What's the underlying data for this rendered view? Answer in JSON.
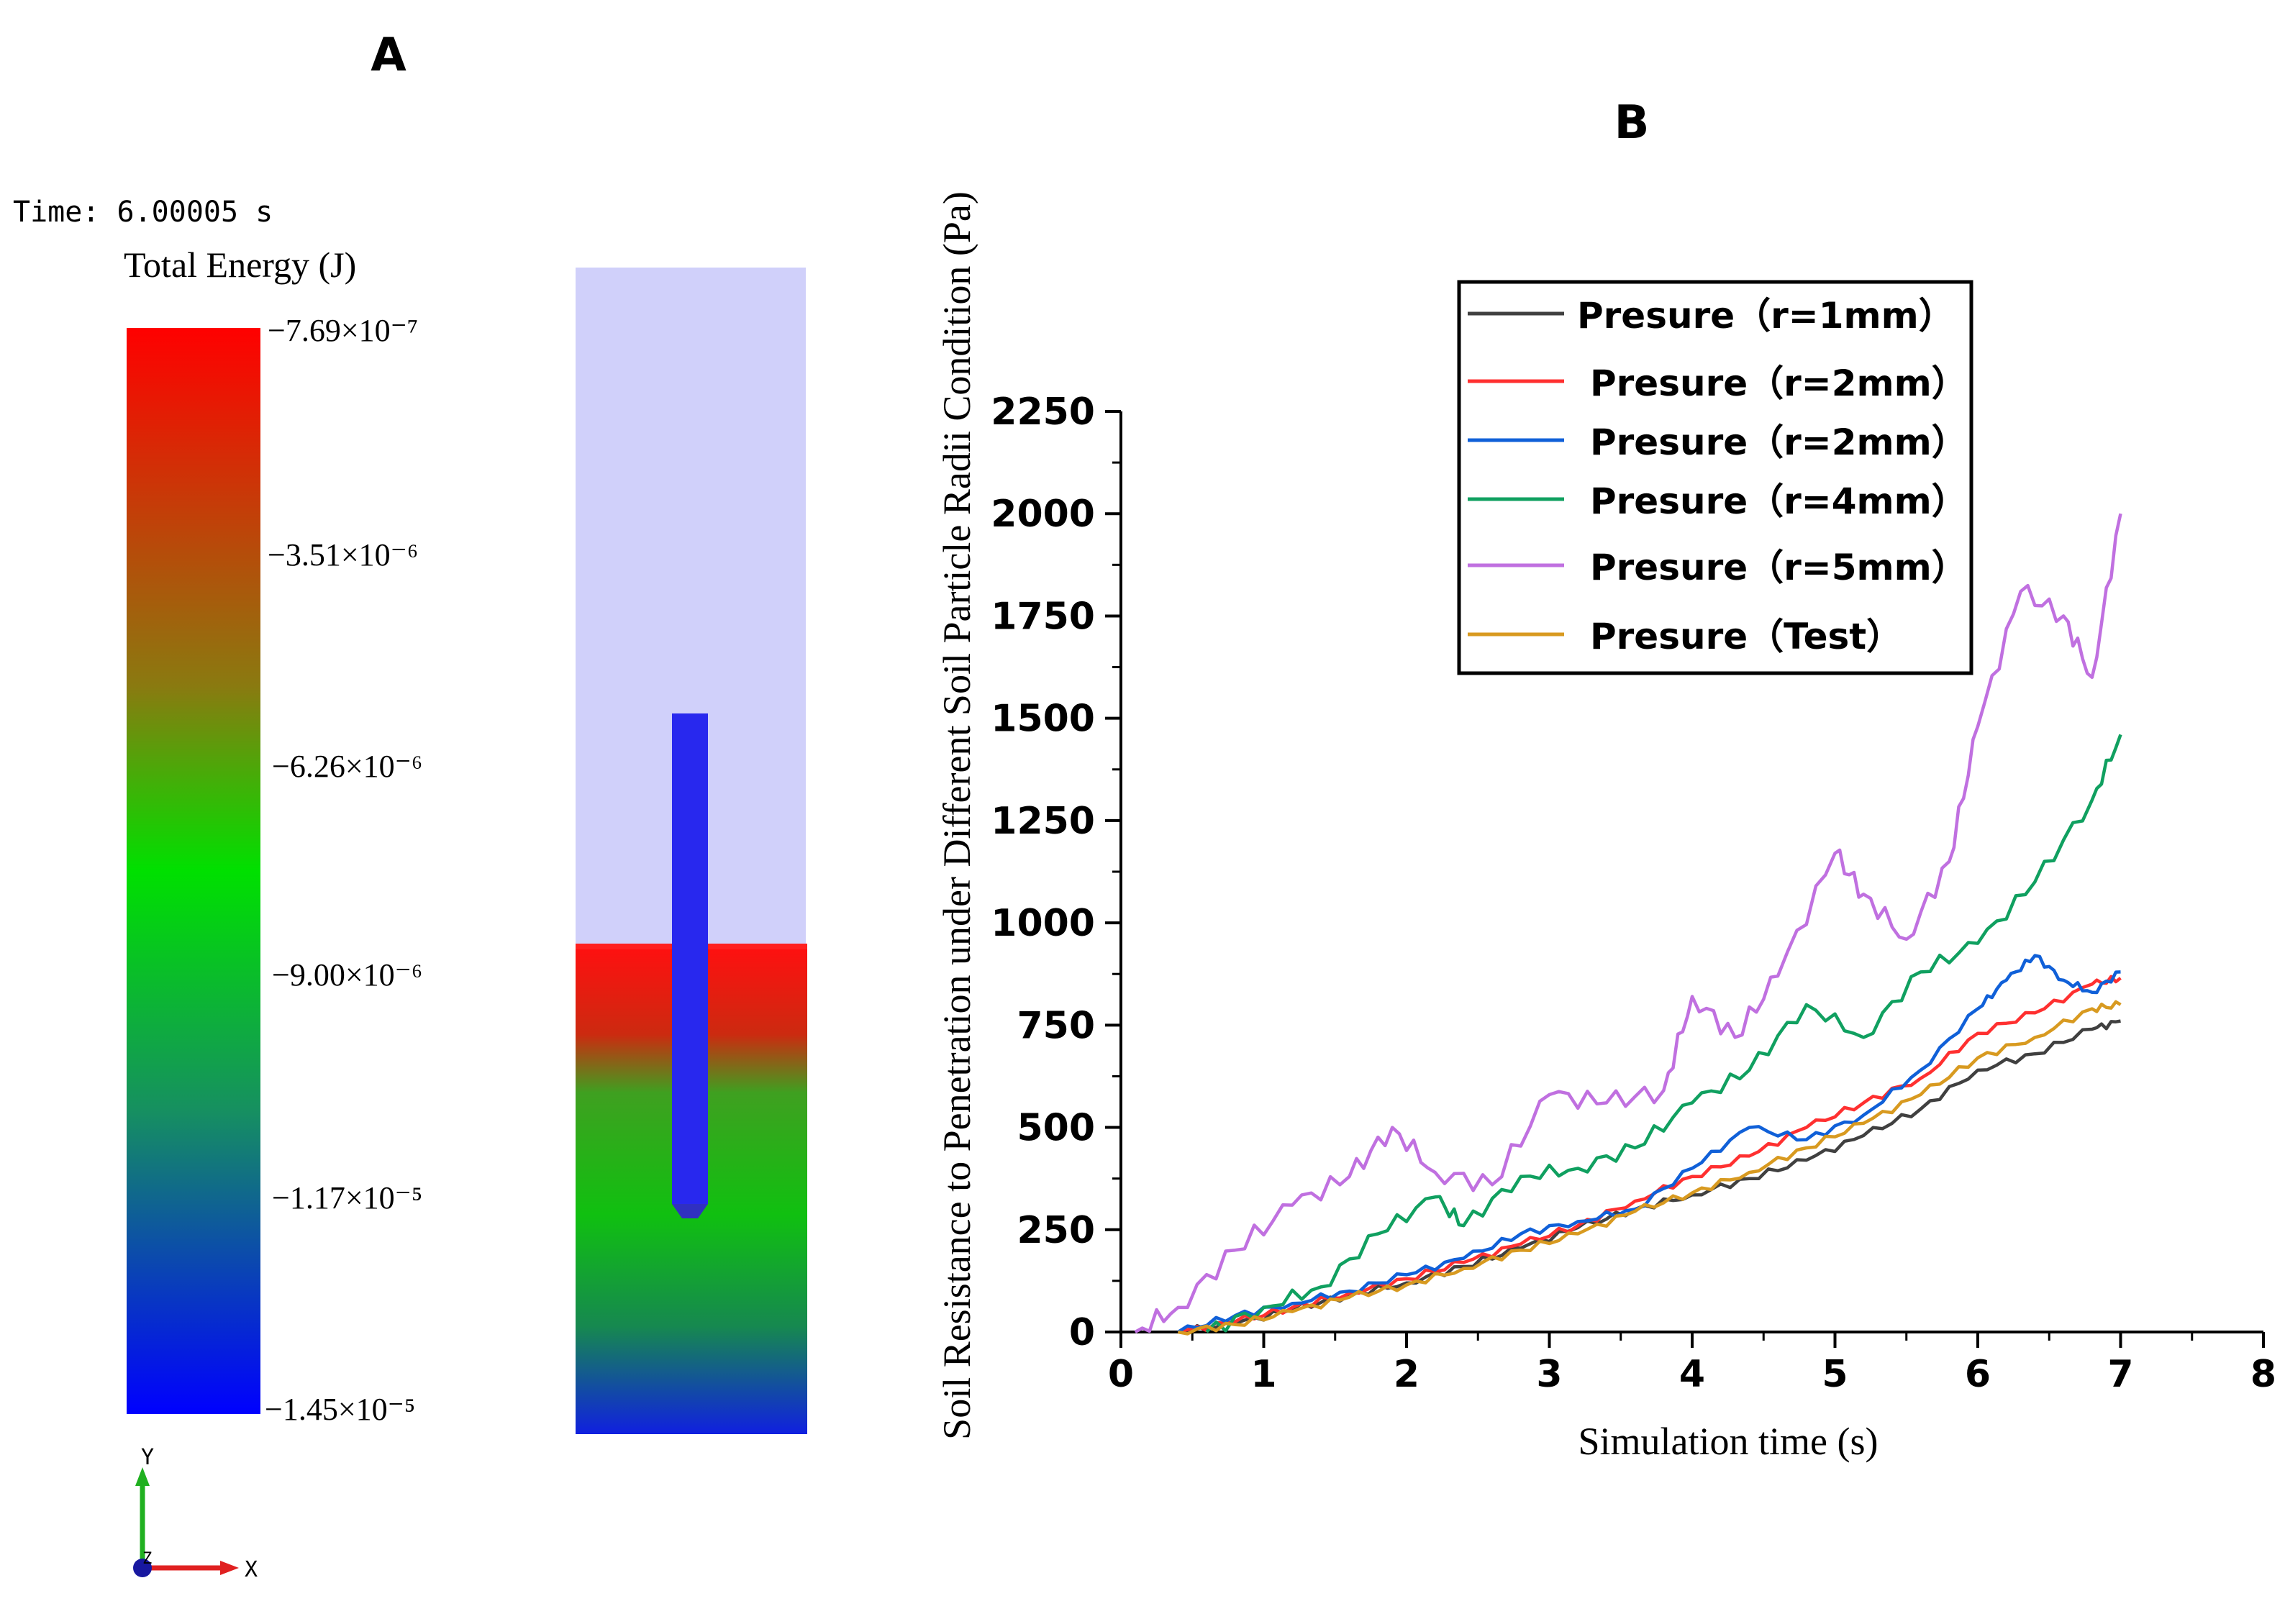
{
  "panel_a": {
    "label": "A",
    "time_text": "Time: 6.00005 s",
    "colorbar_title": "Total Energy (J)",
    "colorbar_ticks": [
      "−7.69×10⁻⁷",
      "−3.51×10⁻⁶",
      "−6.26×10⁻⁶",
      "−9.00×10⁻⁶",
      "−1.17×10⁻⁵",
      "−1.45×10⁻⁵"
    ],
    "axis_triad": {
      "y": "Y",
      "x": "X",
      "z": "Z"
    },
    "colors": {
      "top": "#ff0000",
      "mid_upper": "#8a7a10",
      "mid": "#00d000",
      "mid_lower": "#1a7a80",
      "bottom": "#0000ff",
      "domain_air": "#d0d0fa",
      "probe": "#2020f0"
    }
  },
  "panel_b": {
    "label": "B"
  },
  "chart_data": {
    "type": "line",
    "xlabel": "Simulation time (s)",
    "ylabel": "Soil Resistance to Penetration under Different Soil Particle Radii Condition (Pa)",
    "xlim": [
      0,
      8
    ],
    "ylim": [
      0,
      2250
    ],
    "xticks": [
      "0",
      "1",
      "2",
      "3",
      "4",
      "5",
      "6",
      "7",
      "8"
    ],
    "yticks": [
      "0",
      "250",
      "500",
      "750",
      "1000",
      "1250",
      "1500",
      "1750",
      "2000",
      "2250"
    ],
    "legend_position": "top-right",
    "series": [
      {
        "name": "Presure（r=1mm）",
        "color": "#404040",
        "x": [
          0.4,
          0.8,
          1.2,
          1.6,
          2.0,
          2.4,
          2.8,
          3.2,
          3.6,
          4.0,
          4.4,
          4.8,
          5.2,
          5.6,
          6.0,
          6.4,
          6.8,
          7.0
        ],
        "y": [
          0,
          20,
          55,
          90,
          120,
          160,
          205,
          255,
          300,
          335,
          375,
          420,
          480,
          545,
          640,
          680,
          740,
          760
        ]
      },
      {
        "name": "Presure（r=2mm）",
        "color": "#ff3030",
        "x": [
          0.4,
          0.8,
          1.2,
          1.6,
          2.0,
          2.4,
          2.8,
          3.2,
          3.6,
          4.0,
          4.4,
          4.8,
          5.2,
          5.6,
          6.0,
          6.4,
          6.8,
          7.0
        ],
        "y": [
          0,
          25,
          60,
          95,
          130,
          170,
          215,
          260,
          320,
          380,
          430,
          500,
          560,
          620,
          730,
          780,
          850,
          865
        ]
      },
      {
        "name": "Presure（r=2mm）",
        "color": "#1060d8",
        "x": [
          0.4,
          0.8,
          1.2,
          1.6,
          2.0,
          2.4,
          2.8,
          3.2,
          3.6,
          4.0,
          4.4,
          4.8,
          5.2,
          5.6,
          6.0,
          6.2,
          6.4,
          6.6,
          6.8,
          7.0
        ],
        "y": [
          0,
          40,
          70,
          100,
          140,
          180,
          240,
          270,
          300,
          400,
          500,
          470,
          530,
          640,
          790,
          860,
          920,
          860,
          830,
          880
        ]
      },
      {
        "name": "Presure（r=4mm）",
        "color": "#10a060",
        "x": [
          0.6,
          1.0,
          1.4,
          1.8,
          2.2,
          2.4,
          2.8,
          3.2,
          3.6,
          4.0,
          4.4,
          4.8,
          5.2,
          5.6,
          6.0,
          6.4,
          6.8,
          7.0
        ],
        "y": [
          0,
          60,
          110,
          240,
          330,
          260,
          380,
          400,
          450,
          560,
          640,
          800,
          720,
          880,
          950,
          1100,
          1300,
          1460
        ]
      },
      {
        "name": "Presure（r=5mm）",
        "color": "#c070e0",
        "x": [
          0.1,
          0.4,
          0.8,
          1.2,
          1.6,
          1.9,
          2.2,
          2.6,
          3.0,
          3.4,
          3.8,
          4.0,
          4.3,
          4.6,
          5.0,
          5.2,
          5.5,
          5.8,
          6.0,
          6.3,
          6.6,
          6.8,
          7.0
        ],
        "y": [
          0,
          60,
          200,
          310,
          380,
          500,
          390,
          360,
          580,
          560,
          590,
          820,
          720,
          870,
          1170,
          1070,
          960,
          1150,
          1480,
          1810,
          1750,
          1600,
          2000
        ]
      },
      {
        "name": "Presure（Test）",
        "color": "#d89a20",
        "x": [
          0.4,
          0.8,
          1.2,
          1.6,
          2.0,
          2.4,
          2.8,
          3.2,
          3.6,
          4.0,
          4.4,
          4.8,
          5.2,
          5.6,
          6.0,
          6.4,
          6.8,
          7.0
        ],
        "y": [
          0,
          18,
          50,
          85,
          115,
          155,
          200,
          240,
          295,
          340,
          390,
          450,
          510,
          580,
          670,
          720,
          790,
          800
        ]
      }
    ]
  }
}
